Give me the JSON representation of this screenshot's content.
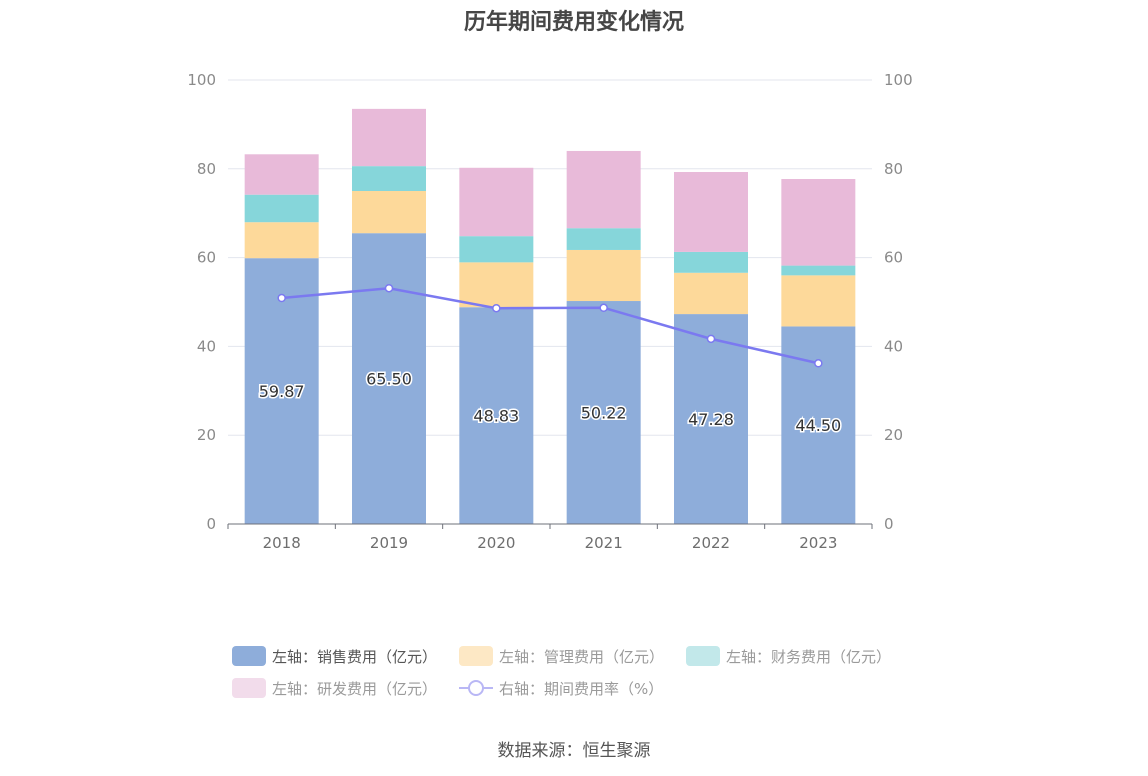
{
  "source": "数据来源：恒生聚源",
  "chart_data": {
    "type": "bar",
    "title": "历年期间费用变化情况",
    "categories": [
      "2018",
      "2019",
      "2020",
      "2021",
      "2022",
      "2023"
    ],
    "stacked": true,
    "ylim_left": [
      0,
      100
    ],
    "ylim_right": [
      0,
      100
    ],
    "left_ticks": [
      "0",
      "20",
      "40",
      "60",
      "80",
      "100"
    ],
    "right_ticks": [
      "0",
      "20",
      "40",
      "60",
      "80",
      "100"
    ],
    "grid": true,
    "legend_position": "bottom",
    "series": [
      {
        "name": "左轴：销售费用（亿元）",
        "axis": "left",
        "type": "bar",
        "color": "#8eadda",
        "values": [
          59.87,
          65.5,
          48.83,
          50.22,
          47.28,
          44.5
        ],
        "labels": [
          "59.87",
          "65.50",
          "48.83",
          "50.22",
          "47.28",
          "44.50"
        ]
      },
      {
        "name": "左轴：管理费用（亿元）",
        "axis": "left",
        "type": "bar",
        "color": "#fdd99a",
        "values": [
          8.1,
          9.5,
          10.1,
          11.5,
          9.3,
          11.5
        ]
      },
      {
        "name": "左轴：财务费用（亿元）",
        "axis": "left",
        "type": "bar",
        "color": "#86d6da",
        "values": [
          6.2,
          5.6,
          5.9,
          4.9,
          4.7,
          2.2
        ]
      },
      {
        "name": "左轴：研发费用（亿元）",
        "axis": "left",
        "type": "bar",
        "color": "#e8bad9",
        "values": [
          9.1,
          12.9,
          15.4,
          17.4,
          18.0,
          19.5
        ]
      },
      {
        "name": "右轴：期间费用率（%）",
        "axis": "right",
        "type": "line",
        "color": "#7b79f0",
        "values": [
          50.9,
          53.1,
          48.6,
          48.7,
          41.7,
          36.2
        ]
      }
    ]
  }
}
